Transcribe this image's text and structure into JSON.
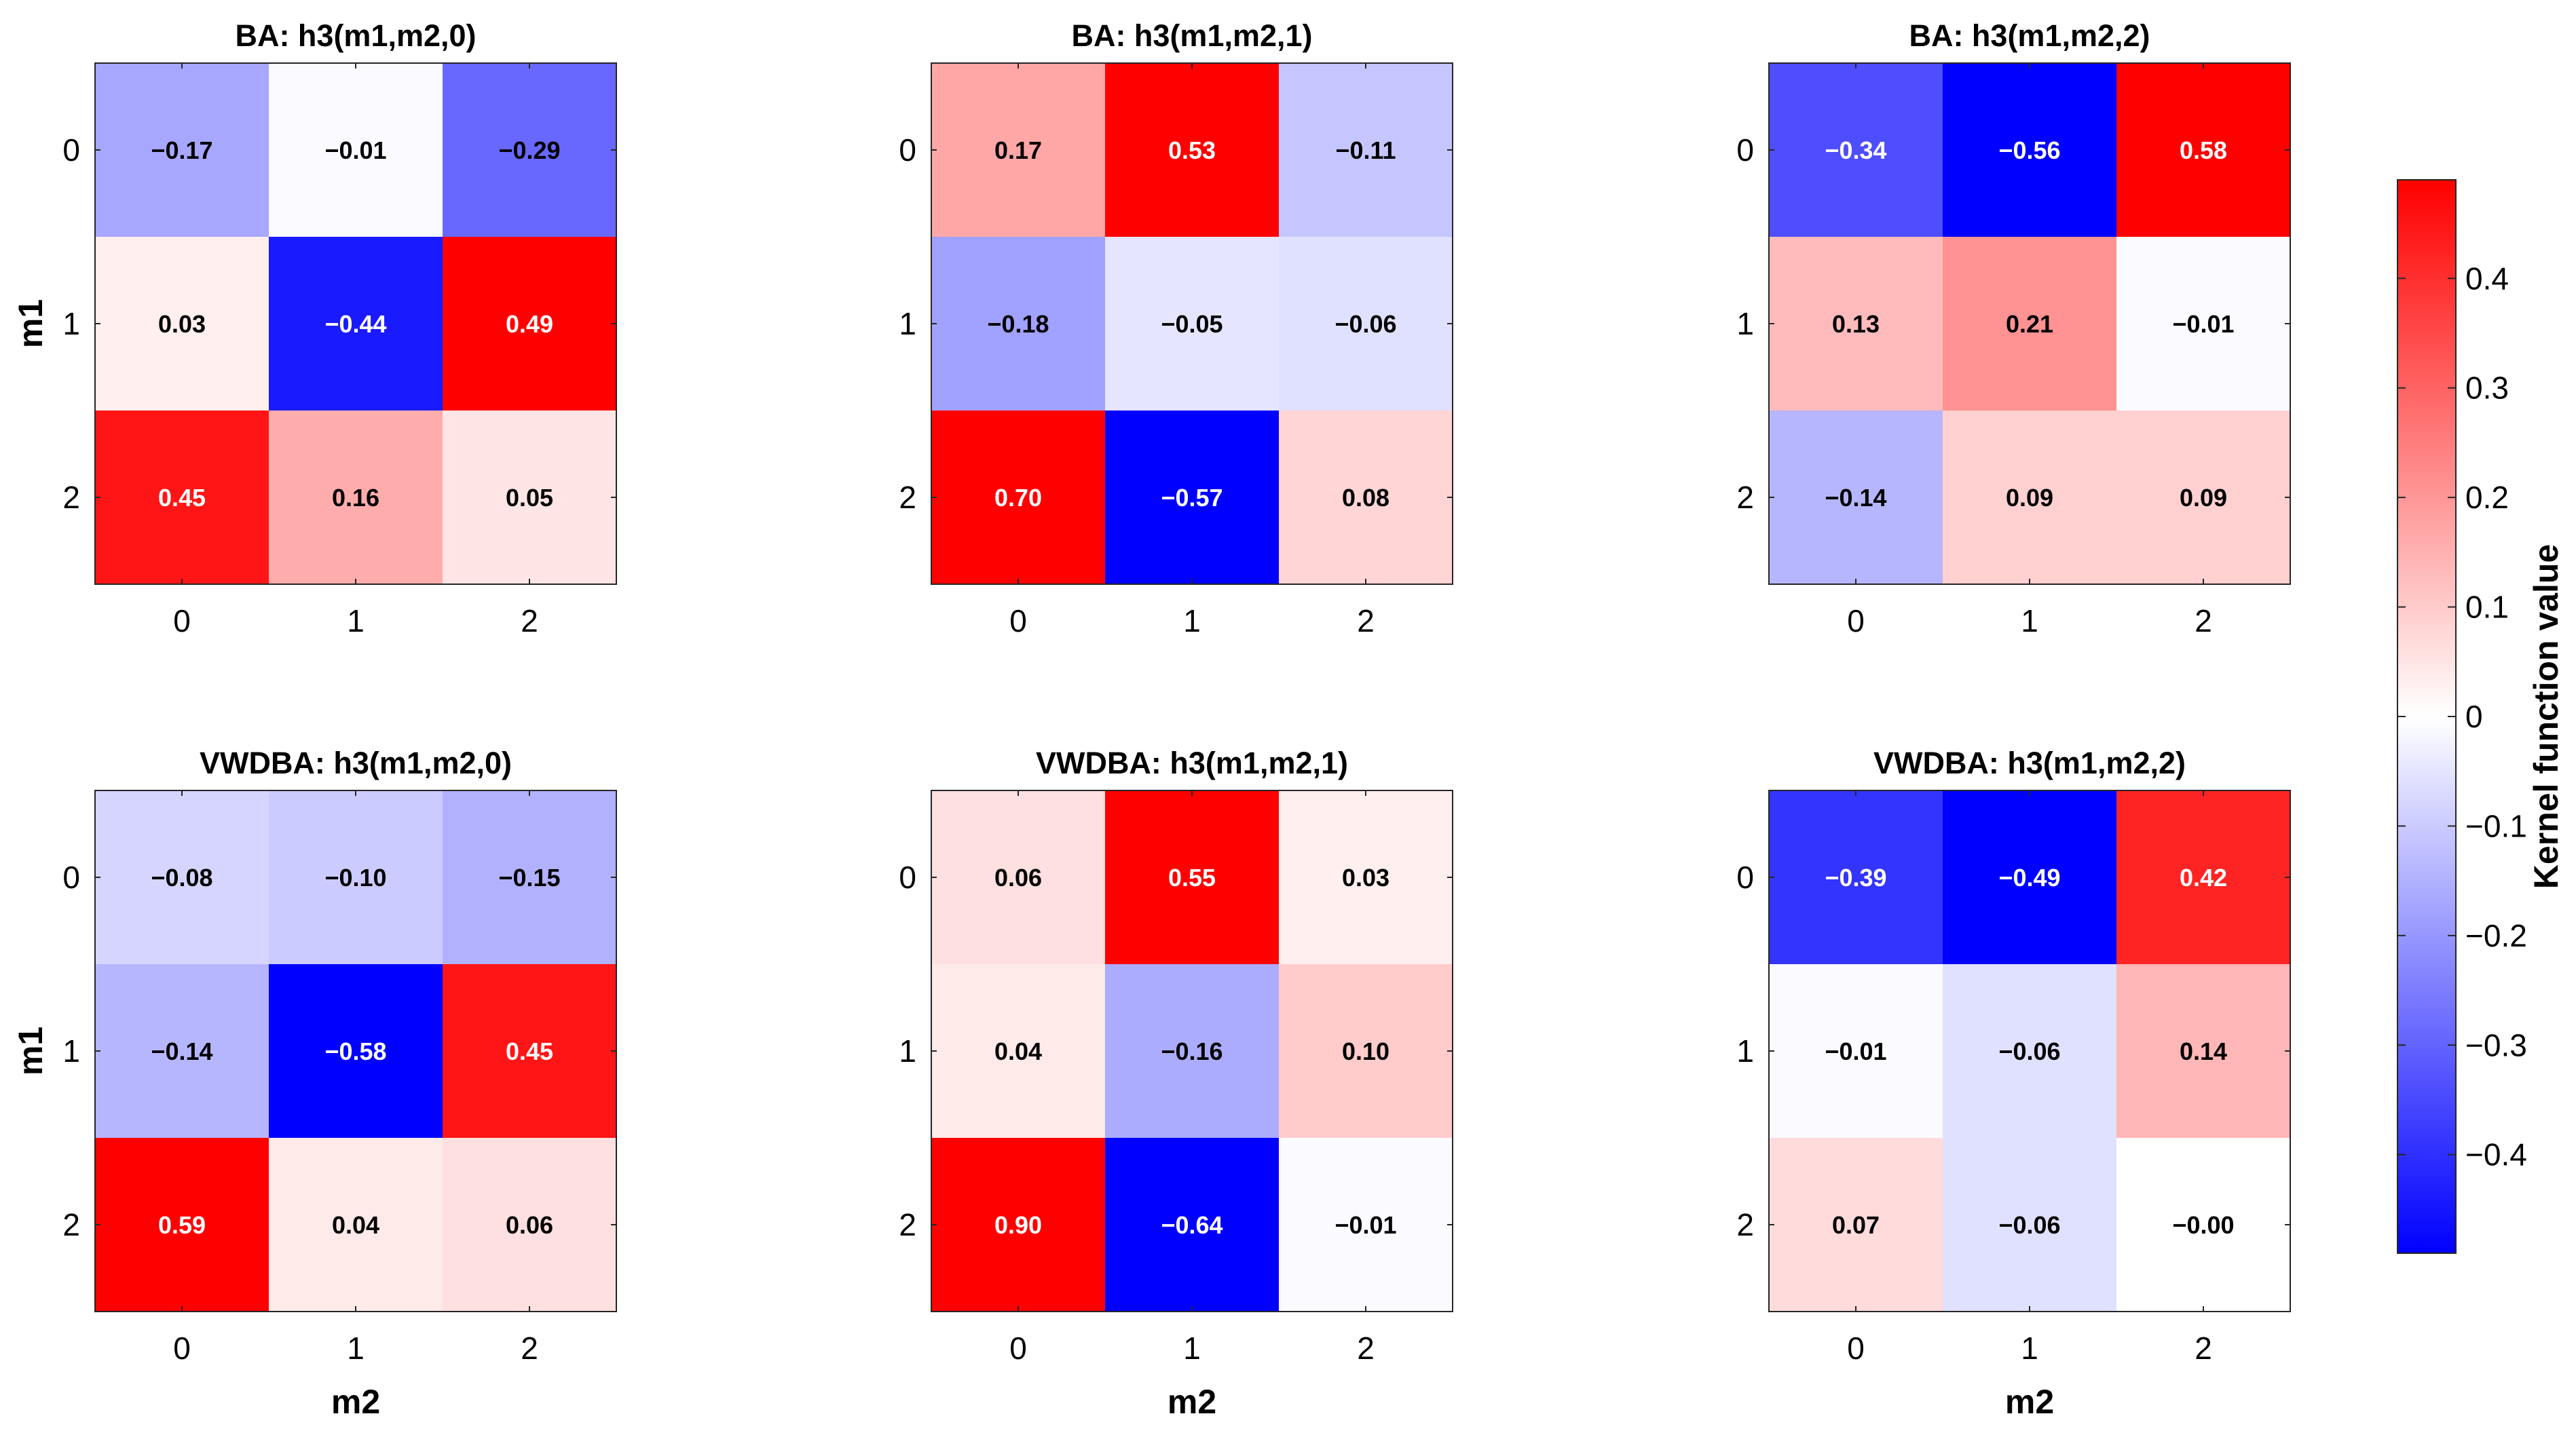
{
  "chart_data": {
    "type": "heatmap",
    "colormap": {
      "low_color": "#0000ff",
      "mid_color": "#ffffff",
      "high_color": "#ff0000",
      "clim": [
        -0.49,
        0.49
      ]
    },
    "colorbar": {
      "label": "Kernel function value",
      "ticks": [
        0.4,
        0.3,
        0.2,
        0.1,
        0,
        -0.1,
        -0.2,
        -0.3,
        -0.4
      ],
      "tick_labels": [
        "0.4",
        "0.3",
        "0.2",
        "0.1",
        "0",
        "−0.1",
        "−0.2",
        "−0.3",
        "−0.4"
      ]
    },
    "x_ticks": [
      "0",
      "1",
      "2"
    ],
    "y_ticks": [
      "0",
      "1",
      "2"
    ],
    "xlabel": "m2",
    "ylabel": "m1",
    "panels": [
      {
        "title": "BA: h3(m1,m2,0)",
        "values": [
          [
            -0.17,
            -0.01,
            -0.29
          ],
          [
            0.03,
            -0.44,
            0.49
          ],
          [
            0.45,
            0.16,
            0.05
          ]
        ],
        "labels": [
          [
            "−0.17",
            "−0.01",
            "−0.29"
          ],
          [
            "0.03",
            "−0.44",
            "0.49"
          ],
          [
            "0.45",
            "0.16",
            "0.05"
          ]
        ]
      },
      {
        "title": "BA: h3(m1,m2,1)",
        "values": [
          [
            0.17,
            0.53,
            -0.11
          ],
          [
            -0.18,
            -0.05,
            -0.06
          ],
          [
            0.7,
            -0.57,
            0.08
          ]
        ],
        "labels": [
          [
            "0.17",
            "0.53",
            "−0.11"
          ],
          [
            "−0.18",
            "−0.05",
            "−0.06"
          ],
          [
            "0.70",
            "−0.57",
            "0.08"
          ]
        ]
      },
      {
        "title": "BA: h3(m1,m2,2)",
        "values": [
          [
            -0.34,
            -0.56,
            0.58
          ],
          [
            0.13,
            0.21,
            -0.01
          ],
          [
            -0.14,
            0.09,
            0.09
          ]
        ],
        "labels": [
          [
            "−0.34",
            "−0.56",
            "0.58"
          ],
          [
            "0.13",
            "0.21",
            "−0.01"
          ],
          [
            "−0.14",
            "0.09",
            "0.09"
          ]
        ]
      },
      {
        "title": "VWDBA: h3(m1,m2,0)",
        "values": [
          [
            -0.08,
            -0.1,
            -0.15
          ],
          [
            -0.14,
            -0.58,
            0.45
          ],
          [
            0.59,
            0.04,
            0.06
          ]
        ],
        "labels": [
          [
            "−0.08",
            "−0.10",
            "−0.15"
          ],
          [
            "−0.14",
            "−0.58",
            "0.45"
          ],
          [
            "0.59",
            "0.04",
            "0.06"
          ]
        ]
      },
      {
        "title": "VWDBA: h3(m1,m2,1)",
        "values": [
          [
            0.06,
            0.55,
            0.03
          ],
          [
            0.04,
            -0.16,
            0.1
          ],
          [
            0.9,
            -0.64,
            -0.01
          ]
        ],
        "labels": [
          [
            "0.06",
            "0.55",
            "0.03"
          ],
          [
            "0.04",
            "−0.16",
            "0.10"
          ],
          [
            "0.90",
            "−0.64",
            "−0.01"
          ]
        ]
      },
      {
        "title": "VWDBA: h3(m1,m2,2)",
        "values": [
          [
            -0.39,
            -0.49,
            0.42
          ],
          [
            -0.01,
            -0.06,
            0.14
          ],
          [
            0.07,
            -0.06,
            -0.0
          ]
        ],
        "labels": [
          [
            "−0.39",
            "−0.49",
            "0.42"
          ],
          [
            "−0.01",
            "−0.06",
            "0.14"
          ],
          [
            "0.07",
            "−0.06",
            "−0.00"
          ]
        ]
      }
    ]
  }
}
